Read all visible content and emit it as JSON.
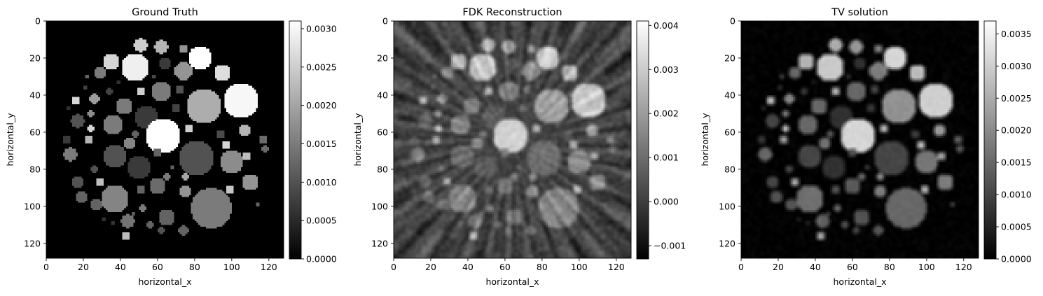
{
  "figure": {
    "background": "#ffffff"
  },
  "chart_data": [
    {
      "type": "heatmap",
      "title": "Ground Truth",
      "xlabel": "horizontal_x",
      "ylabel": "horizontal_y",
      "xlim": [
        0,
        128
      ],
      "ylim": [
        128,
        0
      ],
      "xticks": [
        0,
        20,
        40,
        60,
        80,
        100,
        120
      ],
      "yticks": [
        0,
        20,
        40,
        60,
        80,
        100,
        120
      ],
      "colormap": "gray",
      "colorbar": {
        "range": [
          0.0,
          0.0031
        ],
        "ticks": [
          0.0,
          0.0005,
          0.001,
          0.0015,
          0.002,
          0.0025,
          0.003
        ],
        "tick_labels": [
          "0.0000",
          "0.0005",
          "0.0010",
          "0.0015",
          "0.0020",
          "0.0025",
          "0.0030"
        ]
      },
      "background_value": 0.0,
      "noise": "none",
      "blur": 0
    },
    {
      "type": "heatmap",
      "title": "FDK Reconstruction",
      "xlabel": "horizontal_x",
      "ylabel": "horizontal_y",
      "xlim": [
        0,
        128
      ],
      "ylim": [
        128,
        0
      ],
      "xticks": [
        0,
        20,
        40,
        60,
        80,
        100,
        120
      ],
      "yticks": [
        0,
        20,
        40,
        60,
        80,
        100,
        120
      ],
      "colormap": "gray",
      "colorbar": {
        "range": [
          -0.0013,
          0.0041
        ],
        "ticks": [
          -0.001,
          0.0,
          0.001,
          0.002,
          0.003,
          0.004
        ],
        "tick_labels": [
          "−0.001",
          "0.000",
          "0.001",
          "0.002",
          "0.003",
          "0.004"
        ]
      },
      "background_value": 0.0001,
      "noise": "streaks",
      "blur": 0.6
    },
    {
      "type": "heatmap",
      "title": "TV solution",
      "xlabel": "horizontal_x",
      "ylabel": "horizontal_y",
      "xlim": [
        0,
        128
      ],
      "ylim": [
        128,
        0
      ],
      "xticks": [
        0,
        20,
        40,
        60,
        80,
        100,
        120
      ],
      "yticks": [
        0,
        20,
        40,
        60,
        80,
        100,
        120
      ],
      "colormap": "gray",
      "colorbar": {
        "range": [
          0.0,
          0.0037
        ],
        "ticks": [
          0.0,
          0.0005,
          0.001,
          0.0015,
          0.002,
          0.0025,
          0.003,
          0.0035
        ],
        "tick_labels": [
          "0.0000",
          "0.0005",
          "0.0010",
          "0.0015",
          "0.0020",
          "0.0025",
          "0.0030",
          "0.0035"
        ]
      },
      "background_value": 3e-05,
      "noise": "smooth",
      "blur": 0.9
    }
  ],
  "phantom_discs": [
    {
      "x": 83,
      "y": 20,
      "r": 6.5,
      "v": 0.0031
    },
    {
      "x": 48,
      "y": 25,
      "r": 7.5,
      "v": 0.0029
    },
    {
      "x": 35,
      "y": 22,
      "r": 4.5,
      "v": 0.0026
    },
    {
      "x": 51,
      "y": 13,
      "r": 3.8,
      "v": 0.0025
    },
    {
      "x": 62,
      "y": 14,
      "r": 3.8,
      "v": 0.0022
    },
    {
      "x": 74,
      "y": 15,
      "r": 2.3,
      "v": 0.0018
    },
    {
      "x": 64,
      "y": 23,
      "r": 3.3,
      "v": 0.0007
    },
    {
      "x": 74,
      "y": 27,
      "r": 4.8,
      "v": 0.0018
    },
    {
      "x": 95,
      "y": 28,
      "r": 4.5,
      "v": 0.0027
    },
    {
      "x": 29,
      "y": 28,
      "r": 3.2,
      "v": 0.0015
    },
    {
      "x": 22,
      "y": 30,
      "r": 1.4,
      "v": 0.0012
    },
    {
      "x": 21,
      "y": 36,
      "r": 1.3,
      "v": 0.0008
    },
    {
      "x": 39,
      "y": 33,
      "r": 1.4,
      "v": 0.0006
    },
    {
      "x": 58,
      "y": 30,
      "r": 1.1,
      "v": 0.0009
    },
    {
      "x": 105,
      "y": 43,
      "r": 9.5,
      "v": 0.003
    },
    {
      "x": 85,
      "y": 46,
      "r": 9.5,
      "v": 0.0021
    },
    {
      "x": 62,
      "y": 38,
      "r": 5.5,
      "v": 0.0015
    },
    {
      "x": 51,
      "y": 38,
      "r": 2.2,
      "v": 0.0025
    },
    {
      "x": 72,
      "y": 37,
      "r": 2.3,
      "v": 0.001
    },
    {
      "x": 34,
      "y": 38,
      "r": 1.6,
      "v": 0.0008
    },
    {
      "x": 42,
      "y": 46,
      "r": 4.5,
      "v": 0.0015
    },
    {
      "x": 26,
      "y": 42,
      "r": 2.6,
      "v": 0.0019
    },
    {
      "x": 16,
      "y": 43,
      "r": 2.4,
      "v": 0.0026
    },
    {
      "x": 54,
      "y": 52,
      "r": 6.5,
      "v": 0.0007
    },
    {
      "x": 70,
      "y": 47,
      "r": 2.5,
      "v": 0.0008
    },
    {
      "x": 24,
      "y": 50,
      "r": 1.8,
      "v": 0.0017
    },
    {
      "x": 12,
      "y": 47,
      "r": 1.2,
      "v": 0.0006
    },
    {
      "x": 36,
      "y": 56,
      "r": 5.5,
      "v": 0.0015
    },
    {
      "x": 17,
      "y": 54,
      "r": 3.7,
      "v": 0.001
    },
    {
      "x": 63,
      "y": 62,
      "r": 9.5,
      "v": 0.0031
    },
    {
      "x": 77,
      "y": 58,
      "r": 2.5,
      "v": 0.0025
    },
    {
      "x": 107,
      "y": 59,
      "r": 3.5,
      "v": 0.0022
    },
    {
      "x": 94,
      "y": 61,
      "r": 2.5,
      "v": 0.0009
    },
    {
      "x": 24,
      "y": 58,
      "r": 2.0,
      "v": 0.0026
    },
    {
      "x": 48,
      "y": 61,
      "r": 1.8,
      "v": 0.0012
    },
    {
      "x": 117,
      "y": 64,
      "r": 2.3,
      "v": 0.0013
    },
    {
      "x": 118,
      "y": 69,
      "r": 2.0,
      "v": 0.0013
    },
    {
      "x": 23,
      "y": 64,
      "r": 2.2,
      "v": 0.0022
    },
    {
      "x": 11,
      "y": 64,
      "r": 2.5,
      "v": 0.0007
    },
    {
      "x": 45,
      "y": 66,
      "r": 3.0,
      "v": 0.0016
    },
    {
      "x": 97,
      "y": 67,
      "r": 2.4,
      "v": 0.0026
    },
    {
      "x": 37,
      "y": 73,
      "r": 6.5,
      "v": 0.001
    },
    {
      "x": 81,
      "y": 74,
      "r": 9.5,
      "v": 0.001
    },
    {
      "x": 13,
      "y": 72,
      "r": 3.8,
      "v": 0.0015
    },
    {
      "x": 60,
      "y": 71,
      "r": 2.5,
      "v": 0.0012
    },
    {
      "x": 50,
      "y": 79,
      "r": 6.5,
      "v": 0.0007
    },
    {
      "x": 100,
      "y": 76,
      "r": 6.5,
      "v": 0.0017
    },
    {
      "x": 108,
      "y": 73,
      "r": 2.5,
      "v": 0.0023
    },
    {
      "x": 68,
      "y": 79,
      "r": 1.4,
      "v": 0.0012
    },
    {
      "x": 65,
      "y": 84,
      "r": 2.0,
      "v": 0.0015
    },
    {
      "x": 75,
      "y": 84,
      "r": 2.0,
      "v": 0.002
    },
    {
      "x": 26,
      "y": 80,
      "r": 2.0,
      "v": 0.001
    },
    {
      "x": 60,
      "y": 89,
      "r": 4.5,
      "v": 0.0013
    },
    {
      "x": 29,
      "y": 87,
      "r": 2.2,
      "v": 0.0023
    },
    {
      "x": 17,
      "y": 87,
      "r": 3.5,
      "v": 0.001
    },
    {
      "x": 37,
      "y": 96,
      "r": 7.5,
      "v": 0.0016
    },
    {
      "x": 51,
      "y": 91,
      "r": 2.5,
      "v": 0.0012
    },
    {
      "x": 75,
      "y": 92,
      "r": 3.3,
      "v": 0.0018
    },
    {
      "x": 110,
      "y": 87,
      "r": 4.5,
      "v": 0.0018
    },
    {
      "x": 99,
      "y": 91,
      "r": 2.5,
      "v": 0.0024
    },
    {
      "x": 89,
      "y": 101,
      "r": 11.0,
      "v": 0.0015
    },
    {
      "x": 19,
      "y": 95,
      "r": 3.5,
      "v": 0.0012
    },
    {
      "x": 114,
      "y": 99,
      "r": 1.2,
      "v": 0.0012
    },
    {
      "x": 52,
      "y": 101,
      "r": 2.0,
      "v": 0.0015
    },
    {
      "x": 47,
      "y": 104,
      "r": 1.5,
      "v": 0.0011
    },
    {
      "x": 27,
      "y": 99,
      "r": 3.0,
      "v": 0.0012
    },
    {
      "x": 65,
      "y": 106,
      "r": 4.5,
      "v": 0.0012
    },
    {
      "x": 44,
      "y": 108,
      "r": 3.8,
      "v": 0.0014
    },
    {
      "x": 56,
      "y": 110,
      "r": 2.0,
      "v": 0.0012
    },
    {
      "x": 62,
      "y": 113,
      "r": 2.0,
      "v": 0.001
    },
    {
      "x": 74,
      "y": 113,
      "r": 2.8,
      "v": 0.0012
    },
    {
      "x": 43,
      "y": 116,
      "r": 2.2,
      "v": 0.0023
    },
    {
      "x": 31,
      "y": 107,
      "r": 1.3,
      "v": 0.0006
    },
    {
      "x": 36,
      "y": 109,
      "r": 1.2,
      "v": 0.0006
    }
  ]
}
